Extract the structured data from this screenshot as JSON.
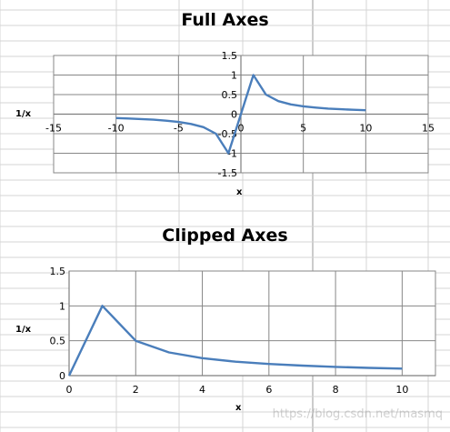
{
  "watermark": "https://blog.csdn.net/masmq",
  "colors": {
    "series": "#4a7ebb",
    "plot_grid": "#878787",
    "sheet_grid": "#d4d4d4",
    "plot_border": "#878787"
  },
  "chart_data": [
    {
      "type": "line",
      "title": "Full Axes",
      "xlabel": "x",
      "ylabel": "1/x",
      "xlim": [
        -15,
        15
      ],
      "ylim": [
        -1.5,
        1.5
      ],
      "x_ticks": [
        "-15",
        "-10",
        "-5",
        "0",
        "5",
        "10",
        "15"
      ],
      "y_ticks": [
        "-1.5",
        "-1",
        "-0.5",
        "0",
        "0.5",
        "1",
        "1.5"
      ],
      "grid": "vertical and horizontal major",
      "legend": "none",
      "series": [
        {
          "x": [
            -10,
            -9,
            -8,
            -7,
            -6,
            -5,
            -4,
            -3,
            -2,
            -1,
            0,
            1,
            2,
            3,
            4,
            5,
            6,
            7,
            8,
            9,
            10
          ],
          "y": [
            -0.1,
            -0.111,
            -0.125,
            -0.143,
            -0.167,
            -0.2,
            -0.25,
            -0.333,
            -0.5,
            -1,
            0,
            1,
            0.5,
            0.333,
            0.25,
            0.2,
            0.167,
            0.143,
            0.125,
            0.111,
            0.1
          ]
        }
      ]
    },
    {
      "type": "line",
      "title": "Clipped Axes",
      "xlabel": "x",
      "ylabel": "1/x",
      "xlim": [
        0,
        11
      ],
      "ylim": [
        0,
        1.5
      ],
      "x_ticks": [
        "0",
        "2",
        "4",
        "6",
        "8",
        "10"
      ],
      "y_ticks": [
        "0",
        "0.5",
        "1",
        "1.5"
      ],
      "grid": "vertical and horizontal major",
      "legend": "none",
      "series": [
        {
          "x": [
            0,
            1,
            2,
            3,
            4,
            5,
            6,
            7,
            8,
            9,
            10
          ],
          "y": [
            0,
            1,
            0.5,
            0.333,
            0.25,
            0.2,
            0.167,
            0.143,
            0.125,
            0.111,
            0.1
          ]
        }
      ]
    }
  ]
}
